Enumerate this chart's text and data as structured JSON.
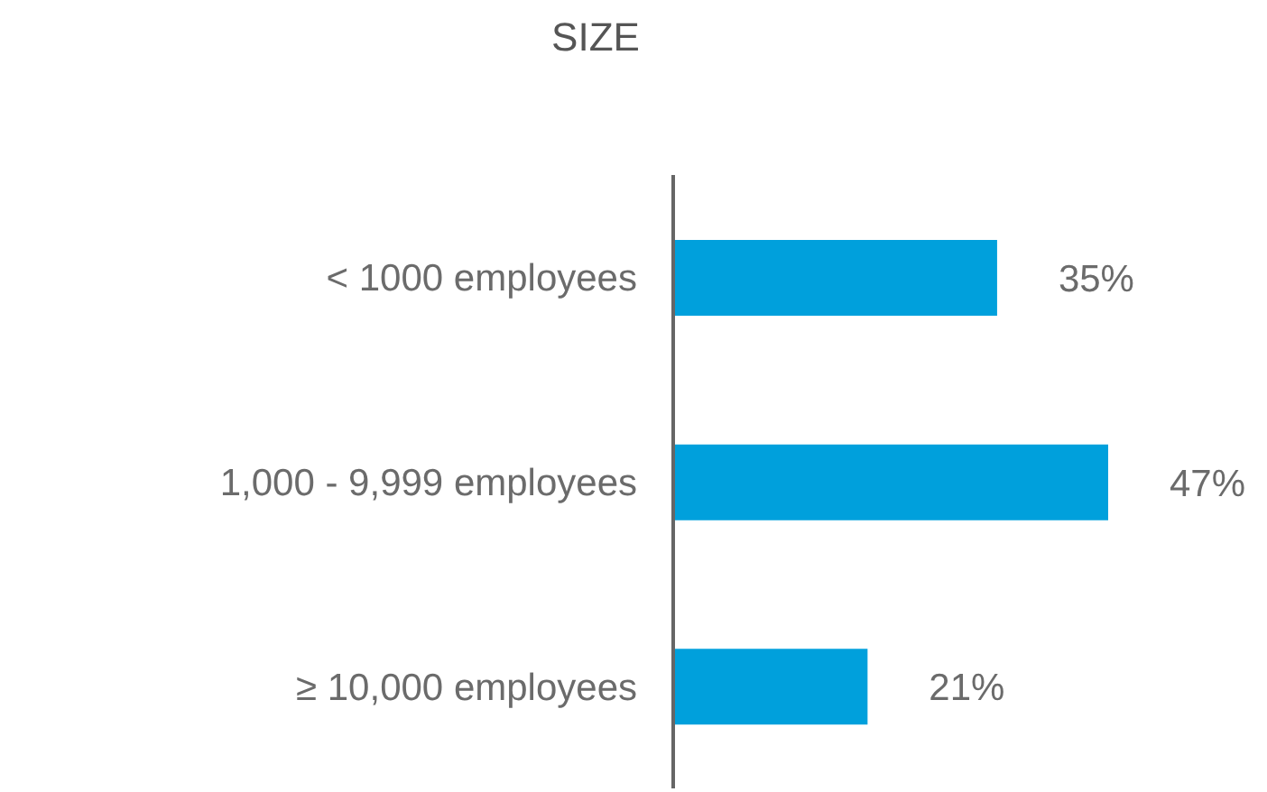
{
  "chart_data": {
    "type": "bar",
    "title": "SIZE",
    "orientation": "horizontal",
    "categories": [
      "< 1000 employees",
      "1,000 - 9,999 employees",
      "≥ 10,000 employees"
    ],
    "values": [
      35,
      47,
      21
    ],
    "color": "#00a0dc",
    "value_labels": [
      "35%",
      "47%",
      "21%"
    ],
    "grid": false
  }
}
